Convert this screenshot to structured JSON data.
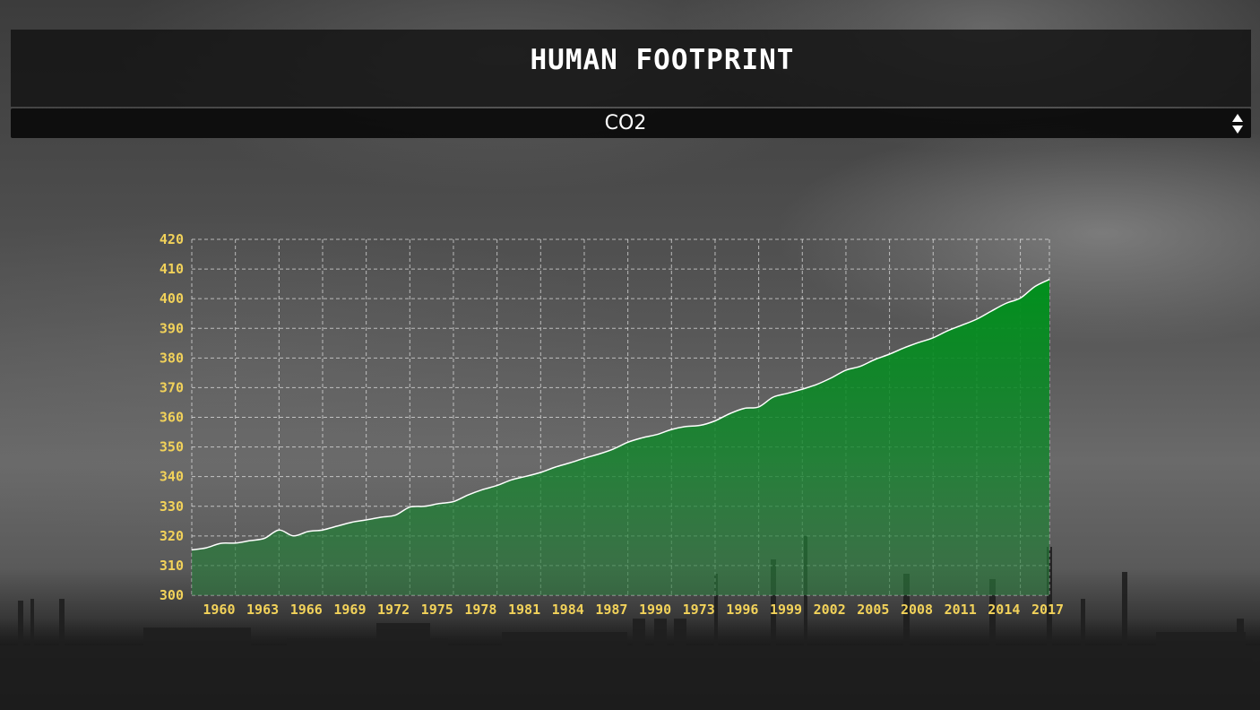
{
  "header": {
    "title": "HUMAN FOOTPRINT"
  },
  "selector": {
    "selected": "CO2",
    "arrows_icon": "up-down-chevron-icon"
  },
  "colors": {
    "tick_label": "#f2d25a",
    "area_top": "#008a1a",
    "line": "#ffffff"
  },
  "chart_data": {
    "type": "area",
    "title": "",
    "xlabel": "",
    "ylabel": "",
    "ylim": [
      300,
      420
    ],
    "y_ticks": [
      "300",
      "310",
      "320",
      "330",
      "340",
      "350",
      "360",
      "370",
      "380",
      "390",
      "400",
      "410",
      "420"
    ],
    "x_tick_labels": [
      "1960",
      "1963",
      "1966",
      "1969",
      "1972",
      "1975",
      "1978",
      "1981",
      "1984",
      "1987",
      "1990",
      "1973",
      "1996",
      "1999",
      "2002",
      "2005",
      "2008",
      "2011",
      "2014",
      "2017"
    ],
    "grid": true,
    "legend": "none",
    "x": [
      1958,
      1959,
      1960,
      1961,
      1962,
      1963,
      1964,
      1965,
      1966,
      1967,
      1968,
      1969,
      1970,
      1971,
      1972,
      1973,
      1974,
      1975,
      1976,
      1977,
      1978,
      1979,
      1980,
      1981,
      1982,
      1983,
      1984,
      1985,
      1986,
      1987,
      1988,
      1989,
      1990,
      1991,
      1992,
      1993,
      1994,
      1995,
      1996,
      1997,
      1998,
      1999,
      2000,
      2001,
      2002,
      2003,
      2004,
      2005,
      2006,
      2007,
      2008,
      2009,
      2010,
      2011,
      2012,
      2013,
      2014,
      2015,
      2016,
      2017
    ],
    "values": [
      315.3,
      316,
      317.5,
      317.6,
      318.4,
      319.2,
      322,
      320,
      321.5,
      322,
      323.3,
      324.6,
      325.4,
      326.3,
      327,
      329.7,
      330,
      330.9,
      331.6,
      333.8,
      335.6,
      337,
      338.9,
      340.1,
      341.4,
      343.2,
      344.6,
      346.2,
      347.6,
      349.3,
      351.6,
      353.1,
      354.2,
      355.9,
      356.9,
      357.3,
      358.8,
      361.2,
      363,
      363.5,
      366.8,
      368.1,
      369.5,
      371.1,
      373.3,
      375.9,
      377.2,
      379.5,
      381.3,
      383.4,
      385.2,
      386.8,
      389.2,
      391.1,
      393.1,
      395.8,
      398.4,
      400.2,
      404.1,
      406.5
    ]
  }
}
